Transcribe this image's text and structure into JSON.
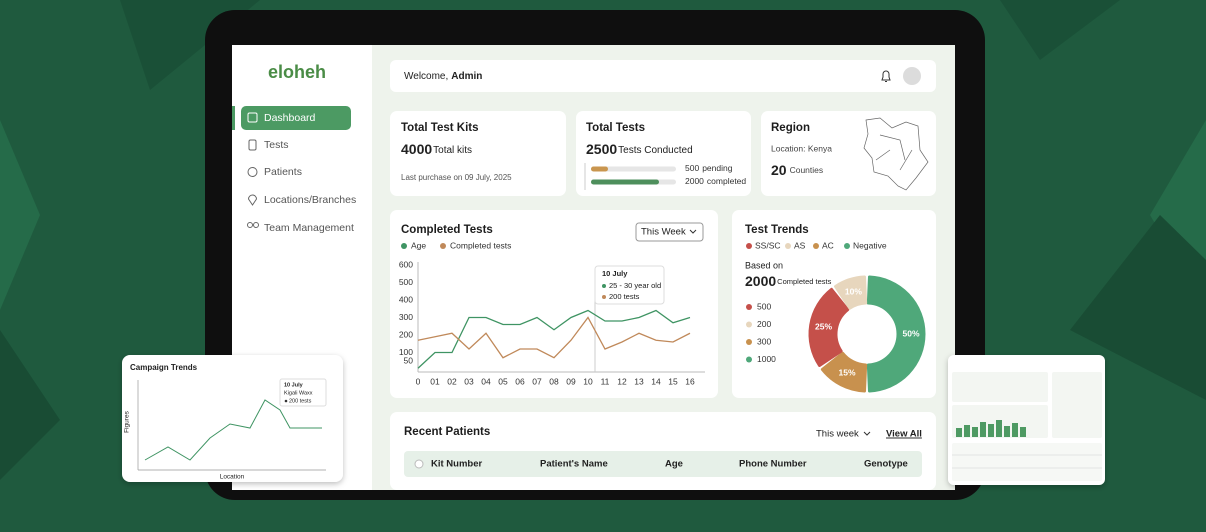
{
  "sidebar": {
    "logo": "eloheh",
    "nav": [
      "Dashboard",
      "Tests",
      "Patients",
      "Locations/Branches",
      "Team Management"
    ]
  },
  "header": {
    "greeting": "Welcome,",
    "user": "Admin"
  },
  "cards": [
    {
      "title": "Total Test Kits",
      "value": 4000,
      "unit": "Total kits",
      "note": "Last purchase on 09 July, 2025"
    },
    {
      "title": "Total Tests",
      "value": 2500,
      "unit": "Tests Conducted",
      "bars": [
        {
          "count": 500,
          "label": "pending",
          "color": "#c9964f"
        },
        {
          "count": 2000,
          "label": "completed",
          "color": "#4e8f5c"
        }
      ]
    },
    {
      "title": "Region",
      "location": "Location: Kenya",
      "value": 20,
      "unit": "Counties"
    }
  ],
  "chart_data": [
    {
      "type": "line",
      "title": "Completed Tests",
      "filter": "This Week",
      "categories": [
        "0",
        "01",
        "02",
        "03",
        "04",
        "05",
        "06",
        "07",
        "08",
        "09",
        "10",
        "11",
        "12",
        "13",
        "14",
        "15",
        "16"
      ],
      "series": [
        {
          "name": "Age",
          "color": "#3f9463",
          "values": [
            10,
            100,
            100,
            300,
            300,
            260,
            260,
            300,
            230,
            300,
            340,
            280,
            280,
            300,
            340,
            270,
            300
          ]
        },
        {
          "name": "Completed tests",
          "color": "#c0895a",
          "values": [
            170,
            190,
            210,
            120,
            210,
            70,
            120,
            120,
            70,
            170,
            300,
            120,
            160,
            210,
            170,
            160,
            210
          ]
        }
      ],
      "ylim": [
        0,
        600
      ],
      "yticks": [
        50,
        100,
        200,
        300,
        400,
        500,
        600
      ],
      "grid": false,
      "annotation": {
        "title": "10 July",
        "lines": [
          "25 - 30 year old",
          "200 tests"
        ]
      }
    },
    {
      "type": "donut",
      "title": "Test Trends",
      "subtitle": "Based on",
      "total": 2000,
      "total_label": "Completed tests",
      "categories": [
        "SS/SC",
        "AS",
        "AC",
        "Negative"
      ],
      "colors": [
        "#c5504a",
        "#e7d6bd",
        "#c8914e",
        "#4fa87a"
      ],
      "values": [
        25,
        10,
        15,
        50
      ],
      "value_labels": [
        "25%",
        "10%",
        "15%",
        "50%"
      ],
      "counts": [
        500,
        200,
        300,
        1000
      ]
    }
  ],
  "patients": {
    "title": "Recent Patients",
    "filter": "This week",
    "link": "View All",
    "columns": [
      "Kit Number",
      "Patient's Name",
      "Age",
      "Phone Number",
      "Genotype"
    ]
  },
  "campaign": {
    "title": "Campaign Trends",
    "ylabel": "Figures",
    "xlabel": "Location",
    "tooltip": [
      "10 July",
      "Kigali Waxx",
      "200 tests"
    ]
  }
}
